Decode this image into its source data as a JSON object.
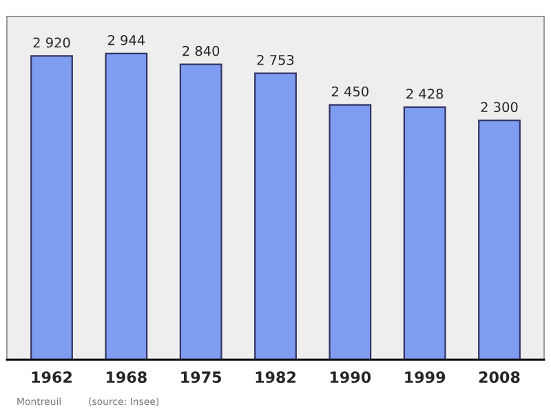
{
  "chart_data": {
    "type": "bar",
    "categories": [
      "1962",
      "1968",
      "1975",
      "1982",
      "1990",
      "1999",
      "2008"
    ],
    "values": [
      2920,
      2944,
      2840,
      2753,
      2450,
      2428,
      2300
    ],
    "value_labels": [
      "2 920",
      "2 944",
      "2 840",
      "2 753",
      "2 450",
      "2 428",
      "2 300"
    ],
    "color": "#7e9cf0",
    "ylim": [
      0,
      3300
    ],
    "tick_labels": "x",
    "grid": false,
    "annotations": [
      "Montreuil",
      "(source: Insee)"
    ]
  }
}
